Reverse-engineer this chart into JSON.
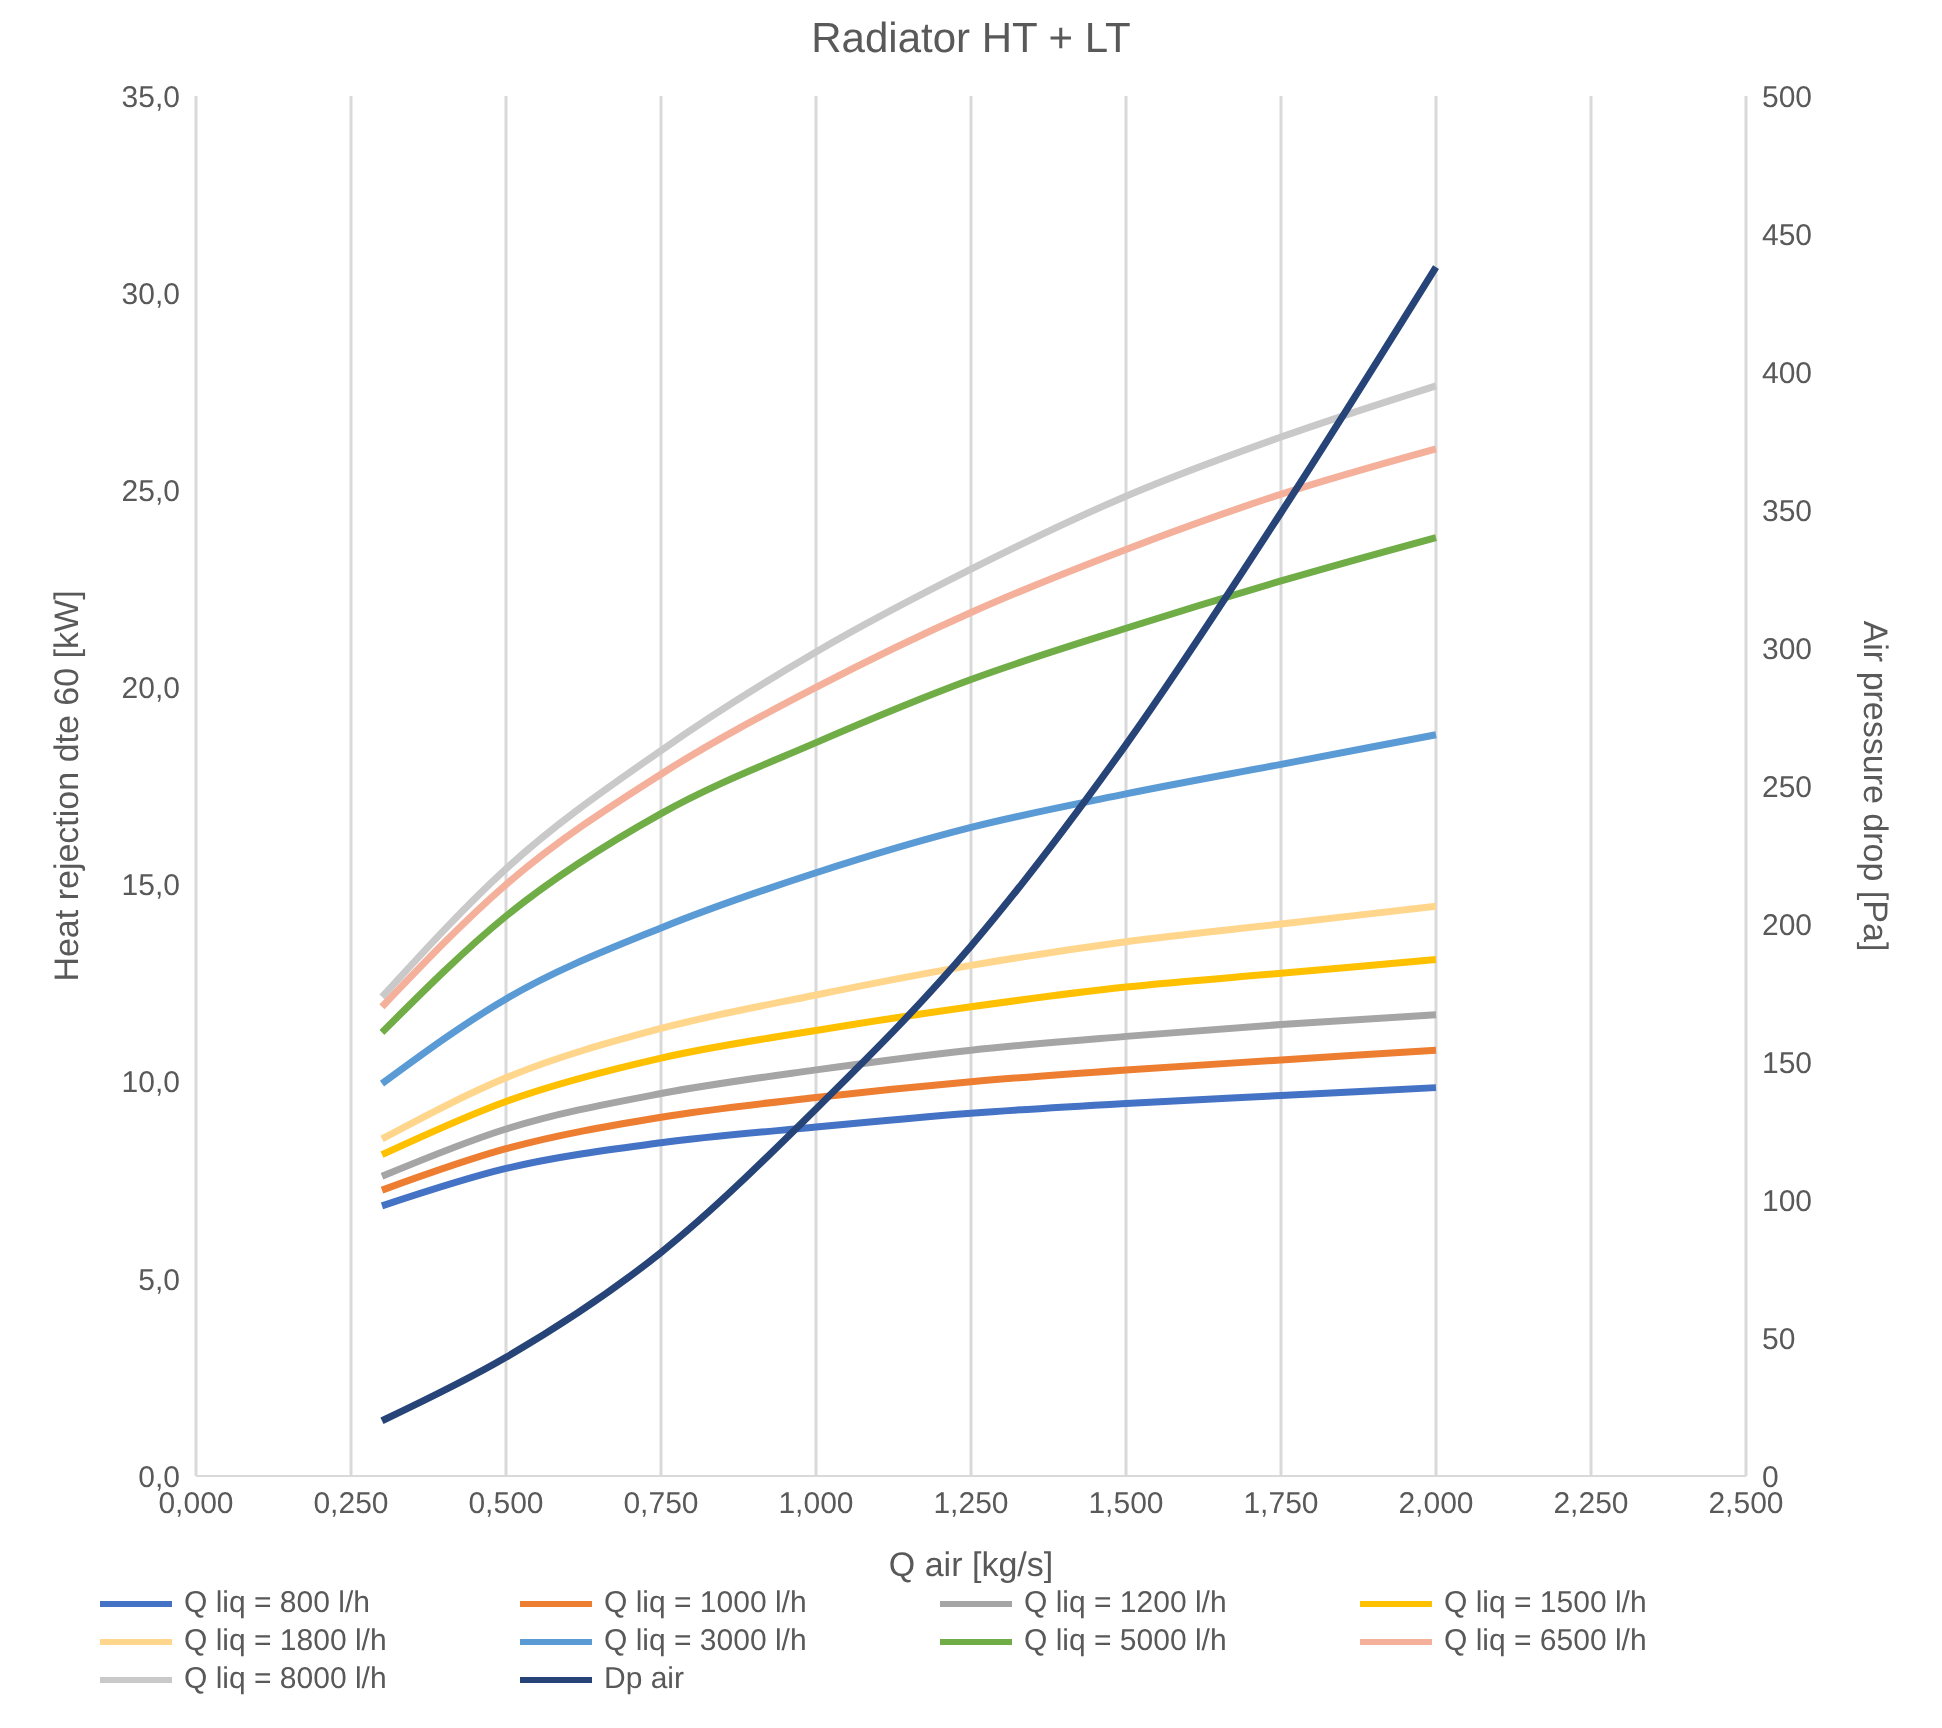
{
  "chart_data": {
    "type": "line",
    "title": "Radiator HT + LT",
    "xlabel": "Q air [kg/s]",
    "ylabel": "Heat rejection dte 60 [kW]",
    "y2label": "Air pressure drop [Pa]",
    "x": [
      0.3,
      0.5,
      0.75,
      1.0,
      1.25,
      1.5,
      1.75,
      2.0
    ],
    "xlim": [
      0,
      2.5
    ],
    "xticks": [
      {
        "value": 0,
        "label": "0,000"
      },
      {
        "value": 0.25,
        "label": "0,250"
      },
      {
        "value": 0.5,
        "label": "0,500"
      },
      {
        "value": 0.75,
        "label": "0,750"
      },
      {
        "value": 1,
        "label": "1,000"
      },
      {
        "value": 1.25,
        "label": "1,250"
      },
      {
        "value": 1.5,
        "label": "1,500"
      },
      {
        "value": 1.75,
        "label": "1,750"
      },
      {
        "value": 2,
        "label": "2,000"
      },
      {
        "value": 2.25,
        "label": "2,250"
      },
      {
        "value": 2.5,
        "label": "2,500"
      }
    ],
    "ylim": [
      0,
      35
    ],
    "yticks": [
      {
        "value": 0,
        "label": "0,0"
      },
      {
        "value": 5,
        "label": "5,0"
      },
      {
        "value": 10,
        "label": "10,0"
      },
      {
        "value": 15,
        "label": "15,0"
      },
      {
        "value": 20,
        "label": "20,0"
      },
      {
        "value": 25,
        "label": "25,0"
      },
      {
        "value": 30,
        "label": "30,0"
      },
      {
        "value": 35,
        "label": "35,0"
      }
    ],
    "y2lim": [
      0,
      500
    ],
    "y2ticks": [
      0,
      50,
      100,
      150,
      200,
      250,
      300,
      350,
      400,
      450,
      500
    ],
    "grid": "x",
    "legend": "bottom",
    "marker": "none",
    "line_style": "solid",
    "series": [
      {
        "name": "Q liq = 800 l/h",
        "color": "#4472c4",
        "values": [
          6.85,
          7.8,
          8.45,
          8.85,
          9.2,
          9.45,
          9.65,
          9.85
        ]
      },
      {
        "name": "Q liq = 1000 l/h",
        "color": "#ed7d31",
        "values": [
          7.25,
          8.3,
          9.1,
          9.6,
          10.0,
          10.3,
          10.55,
          10.8
        ]
      },
      {
        "name": "Q liq = 1200 l/h",
        "color": "#a5a5a5",
        "values": [
          7.6,
          8.8,
          9.7,
          10.3,
          10.8,
          11.15,
          11.45,
          11.7
        ]
      },
      {
        "name": "Q liq = 1500 l/h",
        "color": "#ffc000",
        "values": [
          8.15,
          9.5,
          10.6,
          11.3,
          11.9,
          12.4,
          12.75,
          13.1
        ]
      },
      {
        "name": "Q liq = 1800 l/h",
        "color": "#ffd68c",
        "values": [
          8.55,
          10.1,
          11.35,
          12.2,
          12.95,
          13.55,
          14.0,
          14.45
        ]
      },
      {
        "name": "Q liq = 3000 l/h",
        "color": "#5b9bd5",
        "values": [
          9.95,
          12.1,
          13.9,
          15.3,
          16.45,
          17.3,
          18.05,
          18.8
        ]
      },
      {
        "name": "Q liq = 5000 l/h",
        "color": "#70ad47",
        "values": [
          11.25,
          14.2,
          16.8,
          18.6,
          20.2,
          21.5,
          22.7,
          23.8
        ]
      },
      {
        "name": "Q liq = 6500 l/h",
        "color": "#f4b09a",
        "values": [
          11.9,
          15.0,
          17.8,
          20.0,
          21.9,
          23.5,
          24.9,
          26.05
        ]
      },
      {
        "name": "Q liq = 8000 l/h",
        "color": "#c9c9c9",
        "values": [
          12.15,
          15.4,
          18.4,
          20.9,
          23.0,
          24.85,
          26.35,
          27.65
        ]
      },
      {
        "name": "Dp air",
        "color": "#264478",
        "axis": "y2",
        "values": [
          20,
          43,
          81,
          133,
          192,
          265,
          349,
          438
        ]
      }
    ]
  }
}
